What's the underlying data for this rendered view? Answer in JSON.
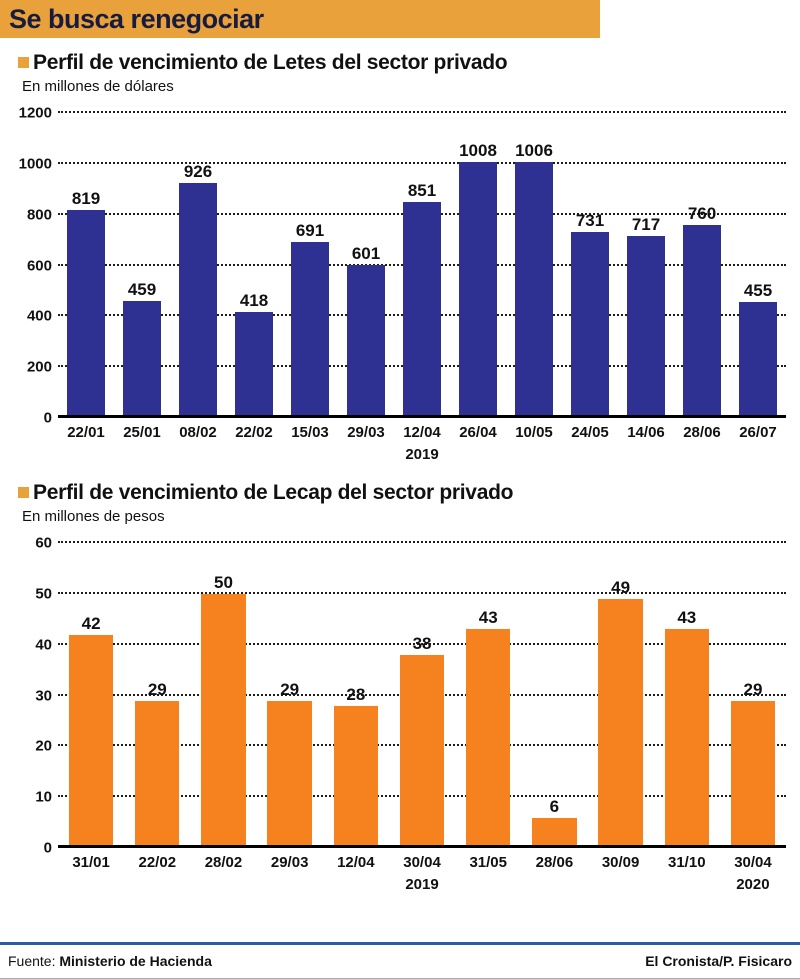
{
  "meta": {
    "title": "Se busca renegociar",
    "source_label": "Fuente:",
    "source": "Ministerio de Hacienda",
    "credit": "El Cronista/P. Fisicaro"
  },
  "colors": {
    "banner_bg": "#E9A13C",
    "banner_text": "#171C3F",
    "bullet": "#E9A13C",
    "letes_bars": "#2E3192",
    "lecap_bars": "#F6821F",
    "gridline": "#1c1c1c",
    "footer_line": "#2A5CAA"
  },
  "chart_data": [
    {
      "type": "bar",
      "title": "Perfil de vencimiento de Letes del sector privado",
      "subtitle": "En millones de dólares",
      "categories": [
        "22/01",
        "25/01",
        "08/02",
        "22/02",
        "15/03",
        "29/03",
        "12/04",
        "26/04",
        "10/05",
        "24/05",
        "14/06",
        "28/06",
        "26/07"
      ],
      "values": [
        819,
        459,
        926,
        418,
        691,
        601,
        851,
        1008,
        1006,
        731,
        717,
        760,
        455
      ],
      "ylim": [
        0,
        1200
      ],
      "yticks": [
        0,
        200,
        400,
        600,
        800,
        1000,
        1200
      ],
      "year_labels": [
        {
          "text": "2019",
          "x_percent": 50
        }
      ],
      "bar_color": "#2E3192",
      "grid": "dotted horizontal",
      "legend": "none",
      "xlabel": "",
      "ylabel": "En millones de dólares"
    },
    {
      "type": "bar",
      "title": "Perfil de vencimiento de Lecap del sector privado",
      "subtitle": "En millones de pesos",
      "categories": [
        "31/01",
        "22/02",
        "28/02",
        "29/03",
        "12/04",
        "30/04",
        "31/05",
        "28/06",
        "30/09",
        "31/10",
        "30/04"
      ],
      "values": [
        42,
        29,
        50,
        29,
        28,
        38,
        43,
        6,
        49,
        43,
        29
      ],
      "ylim": [
        0,
        60
      ],
      "yticks": [
        0,
        10,
        20,
        30,
        40,
        50,
        60
      ],
      "year_labels": [
        {
          "text": "2019",
          "x_percent": 50
        },
        {
          "text": "2020",
          "x_percent": 95.45
        }
      ],
      "bar_color": "#F6821F",
      "grid": "dotted horizontal",
      "legend": "none",
      "xlabel": "",
      "ylabel": "En millones de pesos"
    }
  ]
}
